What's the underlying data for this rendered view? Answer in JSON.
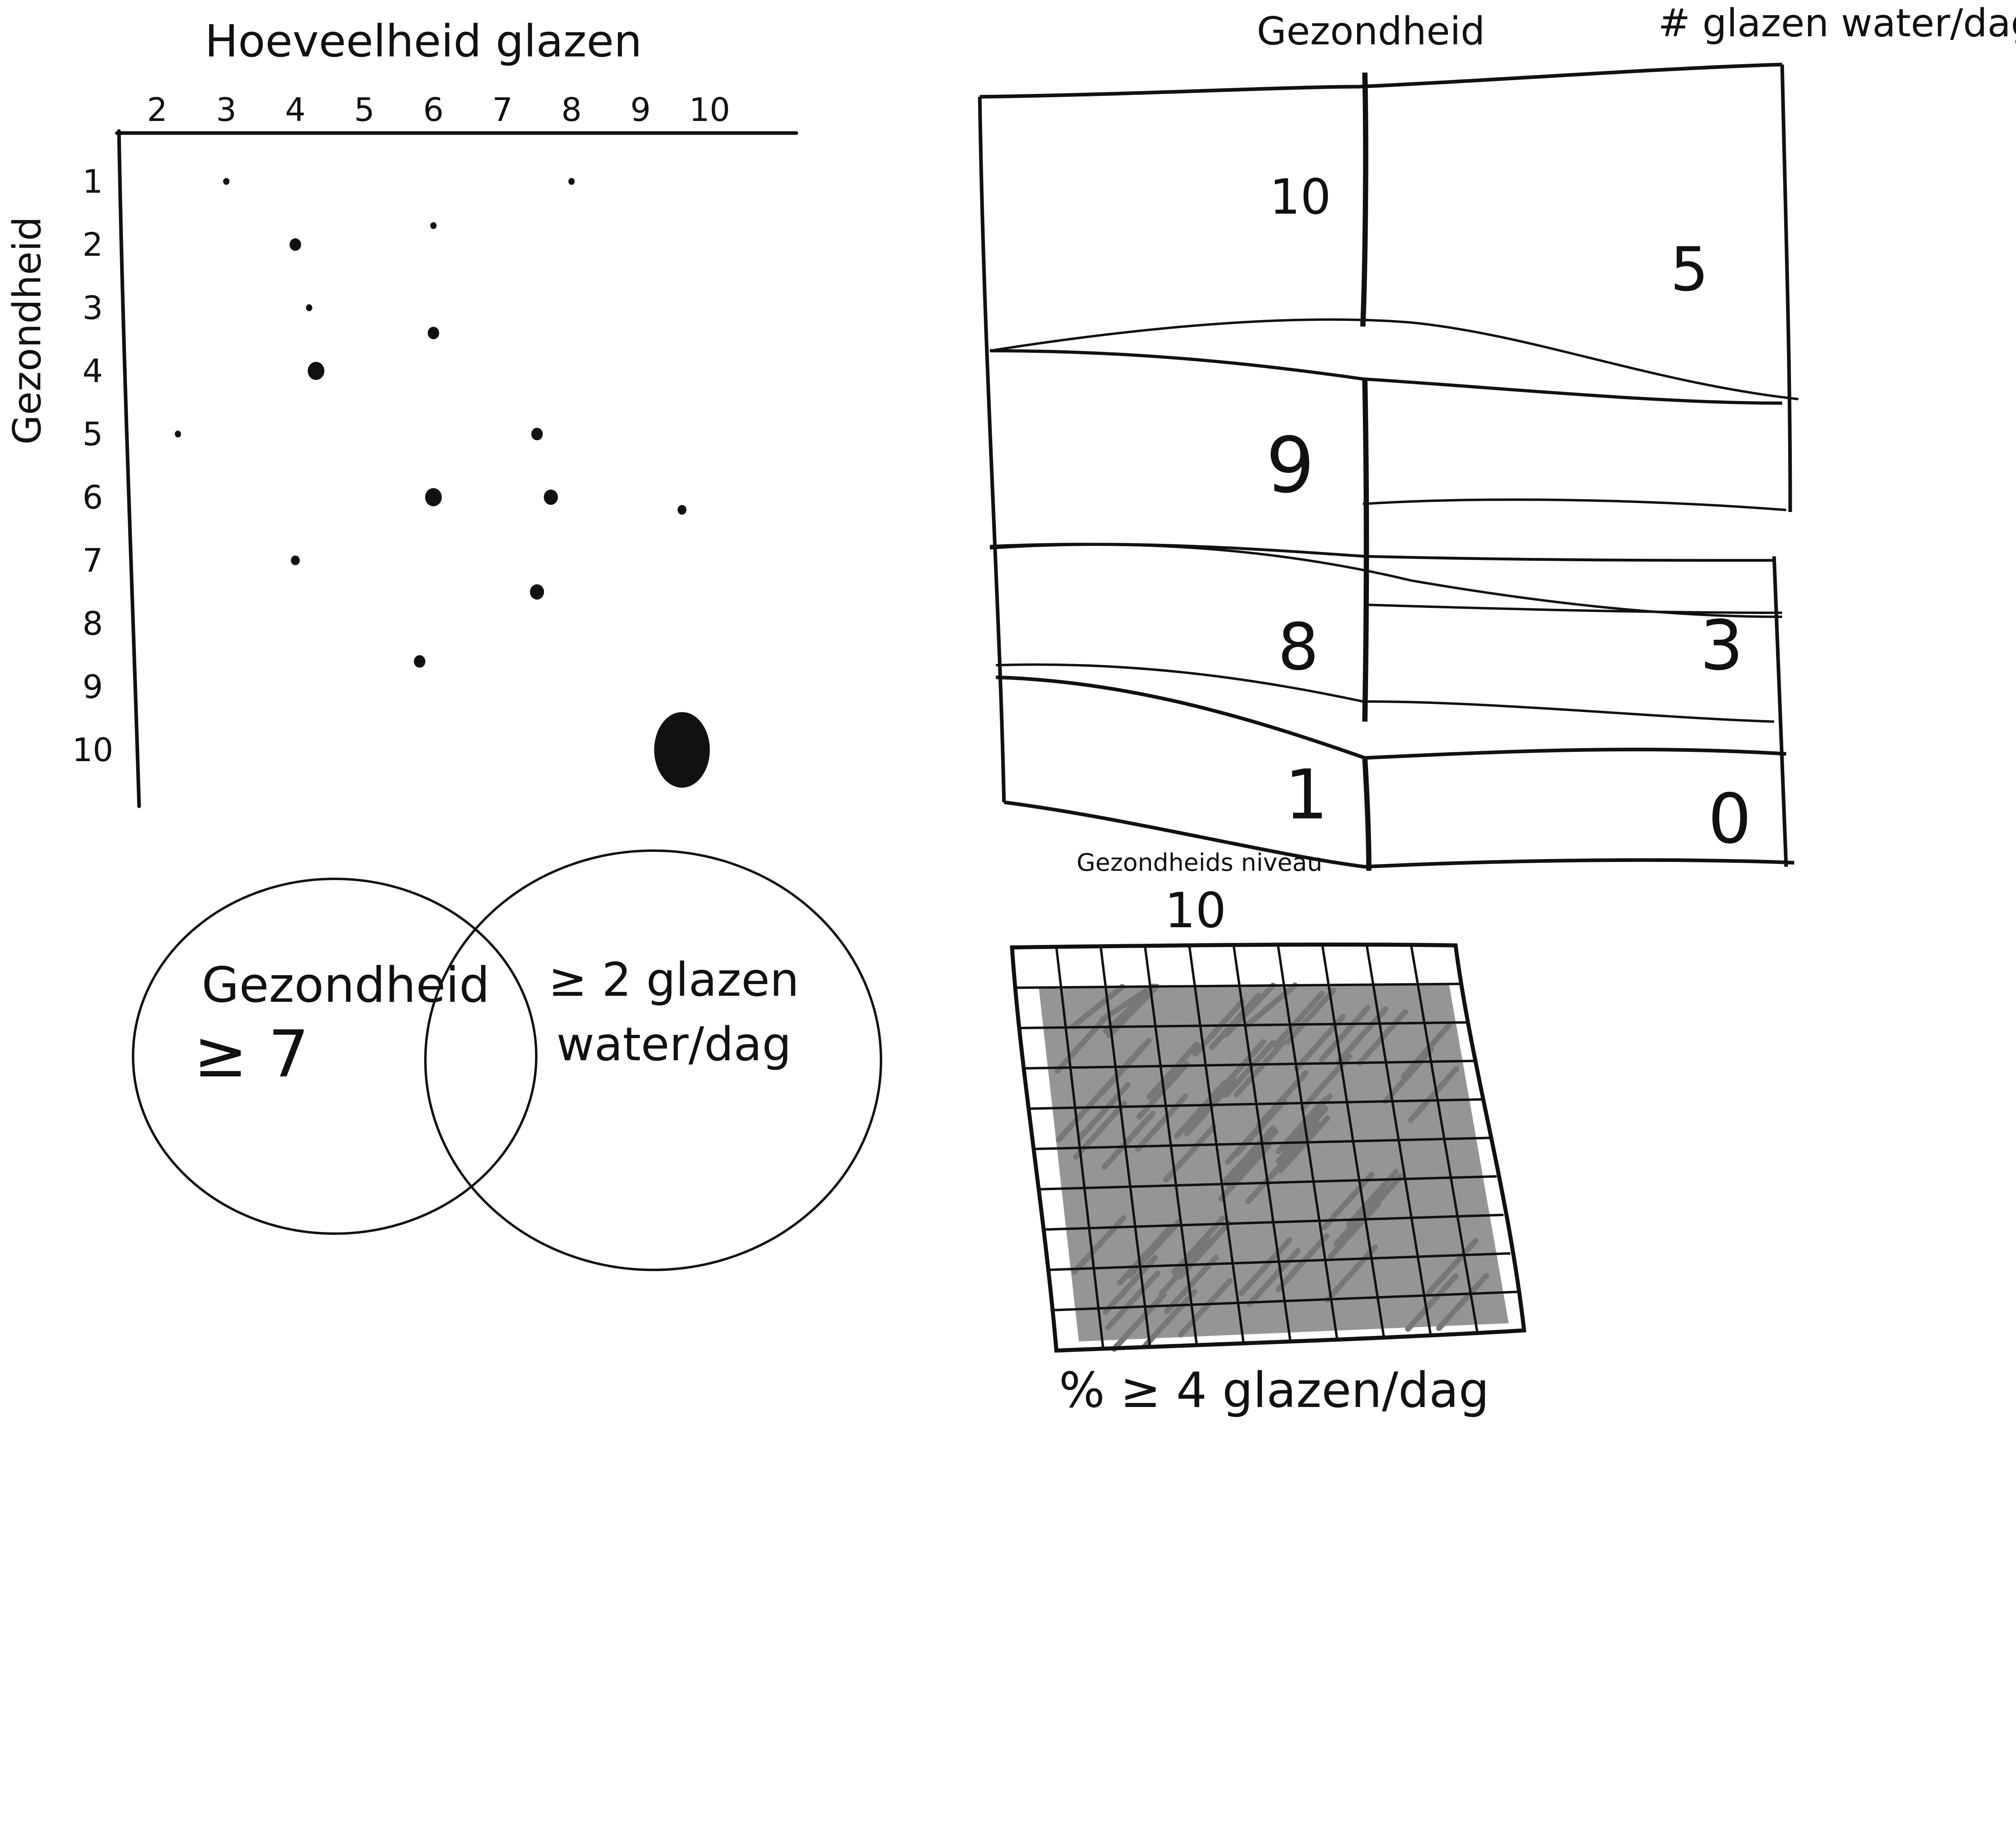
{
  "colors": {
    "ink": "#111111",
    "shade": "#8a8a8a",
    "paper": "#ffffff"
  },
  "chart_data": [
    {
      "type": "scatter",
      "xlabel": "Hoeveelheid glazen",
      "ylabel": "Gezondheid",
      "x_ticks": [
        "2",
        "3",
        "4",
        "5",
        "6",
        "7",
        "8",
        "9",
        "10"
      ],
      "y_ticks": [
        "1",
        "2",
        "3",
        "4",
        "5",
        "6",
        "7",
        "8",
        "9",
        "10"
      ],
      "xlim": [
        2,
        10
      ],
      "ylim": [
        1,
        10
      ],
      "y_inverted": true,
      "points": [
        {
          "x": 3,
          "y": 1,
          "size": 1
        },
        {
          "x": 8,
          "y": 1,
          "size": 1
        },
        {
          "x": 6,
          "y": 1.7,
          "size": 1
        },
        {
          "x": 4,
          "y": 2,
          "size": 3
        },
        {
          "x": 4.2,
          "y": 3,
          "size": 1
        },
        {
          "x": 6,
          "y": 3.4,
          "size": 3
        },
        {
          "x": 4.3,
          "y": 4,
          "size": 5
        },
        {
          "x": 2.3,
          "y": 5,
          "size": 1
        },
        {
          "x": 7.5,
          "y": 5,
          "size": 3
        },
        {
          "x": 6,
          "y": 6,
          "size": 5
        },
        {
          "x": 7.7,
          "y": 6,
          "size": 4
        },
        {
          "x": 9.6,
          "y": 6.2,
          "size": 2
        },
        {
          "x": 4,
          "y": 7,
          "size": 2
        },
        {
          "x": 7.5,
          "y": 7.5,
          "size": 4
        },
        {
          "x": 5.8,
          "y": 8.6,
          "size": 3
        },
        {
          "x": 9.6,
          "y": 10,
          "size": 20
        }
      ]
    },
    {
      "type": "table",
      "columns": [
        "Gezondheid",
        "# glazen water/dag"
      ],
      "rows": [
        {
          "Gezondheid": "10",
          "# glazen water/dag": "5"
        },
        {
          "Gezondheid": "9",
          "# glazen water/dag": ""
        },
        {
          "Gezondheid": "8",
          "# glazen water/dag": "3"
        },
        {
          "Gezondheid": "1",
          "# glazen water/dag": "0"
        }
      ]
    },
    {
      "type": "venn",
      "sets": [
        {
          "label_line1": "Gezondheid",
          "label_line2": "≥ 7"
        },
        {
          "label_line1": "≥ 2 glazen",
          "label_line2": "water/dag"
        }
      ]
    },
    {
      "type": "heatmap",
      "title": "Gezondheids niveau",
      "subtitle": "10",
      "xlabel": "% ≥ 4 glazen/dag",
      "grid_rows": 10,
      "grid_cols": 10,
      "shaded_fraction": 0.9
    }
  ]
}
